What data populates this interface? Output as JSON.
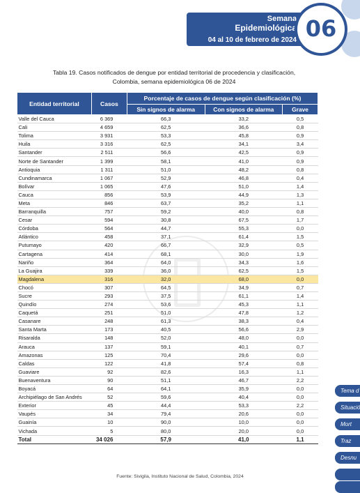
{
  "header": {
    "line1": "Semana",
    "line2": "Epidemiológica",
    "week_number": "06",
    "date_range": "04 al 10 de febrero de 2024"
  },
  "title": {
    "line1": "Tabla 19. Casos notificados de dengue por entidad territorial de procedencia y clasificación,",
    "line2": "Colombia, semana epidemiológica 06 de 2024"
  },
  "table": {
    "headers": {
      "entity": "Entidad territorial",
      "cases": "Casos",
      "group": "Porcentaje de casos de dengue según clasificación (%)",
      "sin": "Sin signos de alarma",
      "con": "Con signos de alarma",
      "grave": "Grave"
    },
    "rows": [
      {
        "entity": "Valle del Cauca",
        "cases": "6 369",
        "sin": "66,3",
        "con": "33,2",
        "grave": "0,5"
      },
      {
        "entity": "Cali",
        "cases": "4 659",
        "sin": "62,5",
        "con": "36,6",
        "grave": "0,8"
      },
      {
        "entity": "Tolima",
        "cases": "3 931",
        "sin": "53,3",
        "con": "45,8",
        "grave": "0,9"
      },
      {
        "entity": "Huila",
        "cases": "3 316",
        "sin": "62,5",
        "con": "34,1",
        "grave": "3,4"
      },
      {
        "entity": "Santander",
        "cases": "2 511",
        "sin": "56,6",
        "con": "42,5",
        "grave": "0,9"
      },
      {
        "entity": "Norte de Santander",
        "cases": "1 399",
        "sin": "58,1",
        "con": "41,0",
        "grave": "0,9"
      },
      {
        "entity": "Antioquia",
        "cases": "1 311",
        "sin": "51,0",
        "con": "48,2",
        "grave": "0,8"
      },
      {
        "entity": "Cundinamarca",
        "cases": "1 067",
        "sin": "52,9",
        "con": "46,8",
        "grave": "0,4"
      },
      {
        "entity": "Bolívar",
        "cases": "1 065",
        "sin": "47,6",
        "con": "51,0",
        "grave": "1,4"
      },
      {
        "entity": "Cauca",
        "cases": "856",
        "sin": "53,9",
        "con": "44,9",
        "grave": "1,3"
      },
      {
        "entity": "Meta",
        "cases": "846",
        "sin": "63,7",
        "con": "35,2",
        "grave": "1,1"
      },
      {
        "entity": "Barranquilla",
        "cases": "757",
        "sin": "59,2",
        "con": "40,0",
        "grave": "0,8"
      },
      {
        "entity": "Cesar",
        "cases": "594",
        "sin": "30,8",
        "con": "67,5",
        "grave": "1,7"
      },
      {
        "entity": "Córdoba",
        "cases": "564",
        "sin": "44,7",
        "con": "55,3",
        "grave": "0,0"
      },
      {
        "entity": "Atlántico",
        "cases": "458",
        "sin": "37,1",
        "con": "61,4",
        "grave": "1,5"
      },
      {
        "entity": "Putumayo",
        "cases": "420",
        "sin": "66,7",
        "con": "32,9",
        "grave": "0,5"
      },
      {
        "entity": "Cartagena",
        "cases": "414",
        "sin": "68,1",
        "con": "30,0",
        "grave": "1,9"
      },
      {
        "entity": "Nariño",
        "cases": "364",
        "sin": "64,0",
        "con": "34,3",
        "grave": "1,6"
      },
      {
        "entity": "La Guajira",
        "cases": "339",
        "sin": "36,0",
        "con": "62,5",
        "grave": "1,5"
      },
      {
        "entity": "Magdalena",
        "cases": "316",
        "sin": "32,0",
        "con": "68,0",
        "grave": "0,0",
        "highlight": true
      },
      {
        "entity": "Chocó",
        "cases": "307",
        "sin": "64,5",
        "con": "34,9",
        "grave": "0,7"
      },
      {
        "entity": "Sucre",
        "cases": "293",
        "sin": "37,5",
        "con": "61,1",
        "grave": "1,4"
      },
      {
        "entity": "Quindío",
        "cases": "274",
        "sin": "53,6",
        "con": "45,3",
        "grave": "1,1"
      },
      {
        "entity": "Caquetá",
        "cases": "251",
        "sin": "51,0",
        "con": "47,8",
        "grave": "1,2"
      },
      {
        "entity": "Casanare",
        "cases": "248",
        "sin": "61,3",
        "con": "38,3",
        "grave": "0,4"
      },
      {
        "entity": "Santa Marta",
        "cases": "173",
        "sin": "40,5",
        "con": "56,6",
        "grave": "2,9"
      },
      {
        "entity": "Risaralda",
        "cases": "148",
        "sin": "52,0",
        "con": "48,0",
        "grave": "0,0"
      },
      {
        "entity": "Arauca",
        "cases": "137",
        "sin": "59,1",
        "con": "40,1",
        "grave": "0,7"
      },
      {
        "entity": "Amazonas",
        "cases": "125",
        "sin": "70,4",
        "con": "29,6",
        "grave": "0,0"
      },
      {
        "entity": "Caldas",
        "cases": "122",
        "sin": "41,8",
        "con": "57,4",
        "grave": "0,8"
      },
      {
        "entity": "Guaviare",
        "cases": "92",
        "sin": "82,6",
        "con": "16,3",
        "grave": "1,1"
      },
      {
        "entity": "Buenaventura",
        "cases": "90",
        "sin": "51,1",
        "con": "46,7",
        "grave": "2,2"
      },
      {
        "entity": "Boyacá",
        "cases": "64",
        "sin": "64,1",
        "con": "35,9",
        "grave": "0,0"
      },
      {
        "entity": "Archipiélago de San Andrés",
        "cases": "52",
        "sin": "59,6",
        "con": "40,4",
        "grave": "0,0"
      },
      {
        "entity": "Exterior",
        "cases": "45",
        "sin": "44,4",
        "con": "53,3",
        "grave": "2,2"
      },
      {
        "entity": "Vaupés",
        "cases": "34",
        "sin": "79,4",
        "con": "20,6",
        "grave": "0,0"
      },
      {
        "entity": "Guainía",
        "cases": "10",
        "sin": "90,0",
        "con": "10,0",
        "grave": "0,0"
      },
      {
        "entity": "Vichada",
        "cases": "5",
        "sin": "80,0",
        "con": "20,0",
        "grave": "0,0"
      }
    ],
    "total": {
      "entity": "Total",
      "cases": "34 026",
      "sin": "57,9",
      "con": "41,0",
      "grave": "1,1"
    }
  },
  "source": "Fuente: Sivigila, Instituto Nacional de Salud, Colombia, 2024",
  "side_tabs": [
    "Tema d",
    "Situació",
    "Mort",
    "Traz",
    "Desnu"
  ],
  "colors": {
    "primary": "#2f5597",
    "highlight": "#fbe7a1"
  }
}
